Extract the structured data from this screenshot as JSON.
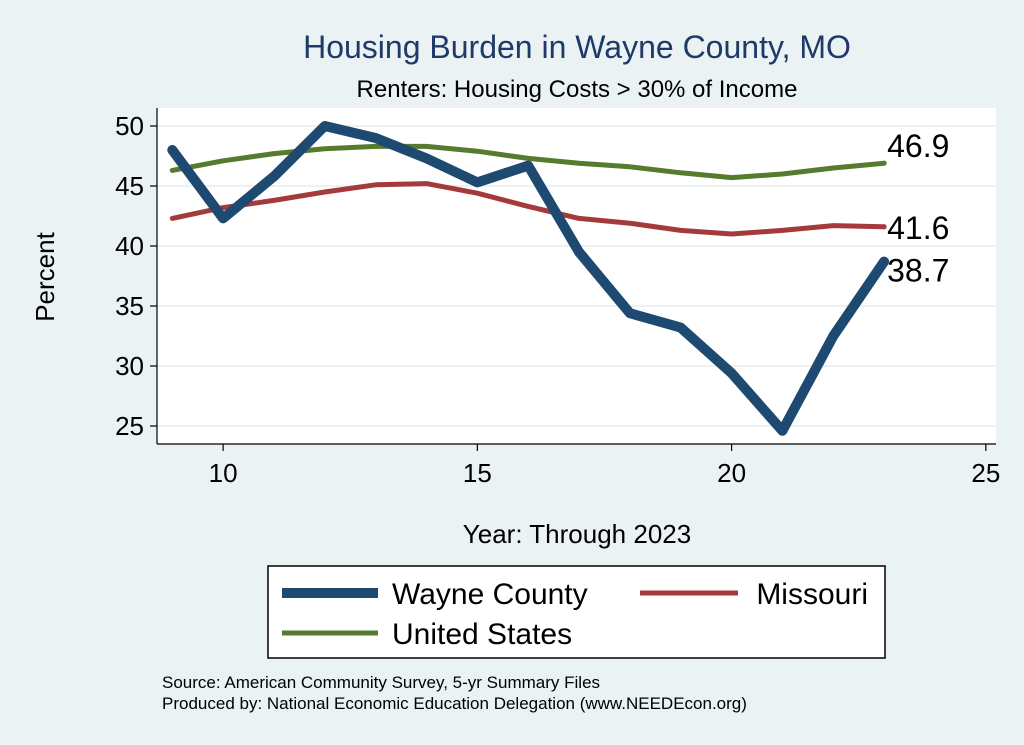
{
  "chart_data": {
    "type": "line",
    "title": "Housing Burden in Wayne County, MO",
    "subtitle": "Renters: Housing Costs > 30% of Income",
    "xlabel": "Year: Through 2023",
    "ylabel": "Percent",
    "xlim": [
      8.7,
      25.2
    ],
    "ylim": [
      23.5,
      51.5
    ],
    "x_ticks": [
      10,
      15,
      20,
      25
    ],
    "y_ticks": [
      25,
      30,
      35,
      40,
      45,
      50
    ],
    "grid": true,
    "series": [
      {
        "name": "Wayne County",
        "color": "#1e4a72",
        "x": [
          9,
          10,
          11,
          12,
          13,
          14,
          15,
          16,
          17,
          18,
          19,
          20,
          21,
          22,
          23
        ],
        "values": [
          48,
          42.3,
          45.8,
          50,
          49,
          47.3,
          45.3,
          46.7,
          39.5,
          34.4,
          33.2,
          29.4,
          24.6,
          32.5,
          38.7
        ],
        "end_label": "38.7"
      },
      {
        "name": "Missouri",
        "color": "#a53a3c",
        "x": [
          9,
          10,
          11,
          12,
          13,
          14,
          15,
          16,
          17,
          18,
          19,
          20,
          21,
          22,
          23
        ],
        "values": [
          42.3,
          43.2,
          43.8,
          44.5,
          45.1,
          45.2,
          44.4,
          43.3,
          42.3,
          41.9,
          41.3,
          41.0,
          41.3,
          41.7,
          41.6
        ],
        "end_label": "41.6"
      },
      {
        "name": "United States",
        "color": "#567a2e",
        "x": [
          9,
          10,
          11,
          12,
          13,
          14,
          15,
          16,
          17,
          18,
          19,
          20,
          21,
          22,
          23
        ],
        "values": [
          46.3,
          47.1,
          47.7,
          48.1,
          48.3,
          48.3,
          47.9,
          47.3,
          46.9,
          46.6,
          46.1,
          45.7,
          46.0,
          46.5,
          46.9
        ],
        "end_label": "46.9"
      }
    ],
    "legend": {
      "placement": "bottom",
      "entries": [
        "Wayne County",
        "Missouri",
        "United States"
      ]
    }
  },
  "footer": {
    "source": "Source: American Community Survey, 5-yr Summary Files",
    "produced_by": "Produced by: National Economic Education Delegation (www.NEEDEcon.org)"
  }
}
